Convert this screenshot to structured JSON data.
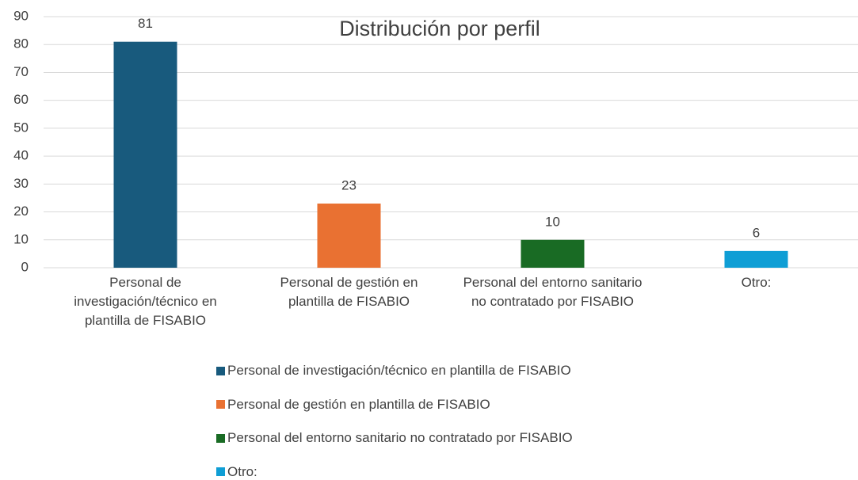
{
  "chart_data": {
    "type": "bar",
    "title": "Distribución por perfil",
    "categories": [
      "Personal de investigación/técnico en plantilla de FISABIO",
      "Personal de gestión en plantilla de FISABIO",
      "Personal del entorno sanitario no contratado por FISABIO",
      "Otro:"
    ],
    "values": [
      81,
      23,
      10,
      6
    ],
    "colors": [
      "#185a7d",
      "#e97132",
      "#196b24",
      "#0f9ed5"
    ],
    "ylim": [
      0,
      90
    ],
    "yticks": [
      0,
      10,
      20,
      30,
      40,
      50,
      60,
      70,
      80,
      90
    ],
    "grid": true,
    "legend": "bottom"
  }
}
